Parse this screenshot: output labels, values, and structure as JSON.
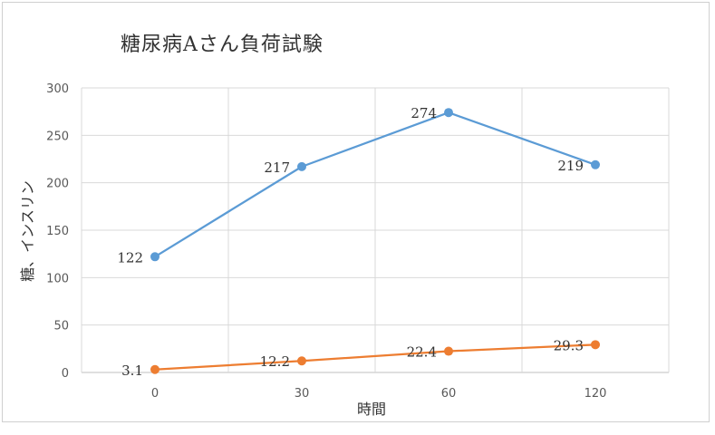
{
  "chart_data": {
    "type": "line",
    "title": "糖尿病Aさん負荷試験",
    "xlabel": "時間",
    "ylabel": "糖、インスリン",
    "x": [
      0,
      30,
      60,
      120
    ],
    "x_tick_labels": [
      "0",
      "30",
      "60",
      "120"
    ],
    "ylim": [
      0,
      300
    ],
    "y_ticks": [
      0,
      50,
      100,
      150,
      200,
      250,
      300
    ],
    "grid": true,
    "series": [
      {
        "values": [
          122,
          217,
          274,
          219
        ],
        "labels": [
          "122",
          "217",
          "274",
          "219"
        ],
        "color": "#5b9bd5"
      },
      {
        "values": [
          3.1,
          12.2,
          22.4,
          29.3
        ],
        "labels": [
          "3.1",
          "12.2",
          "22.4",
          "29.3"
        ],
        "color": "#ed7d31"
      }
    ]
  }
}
